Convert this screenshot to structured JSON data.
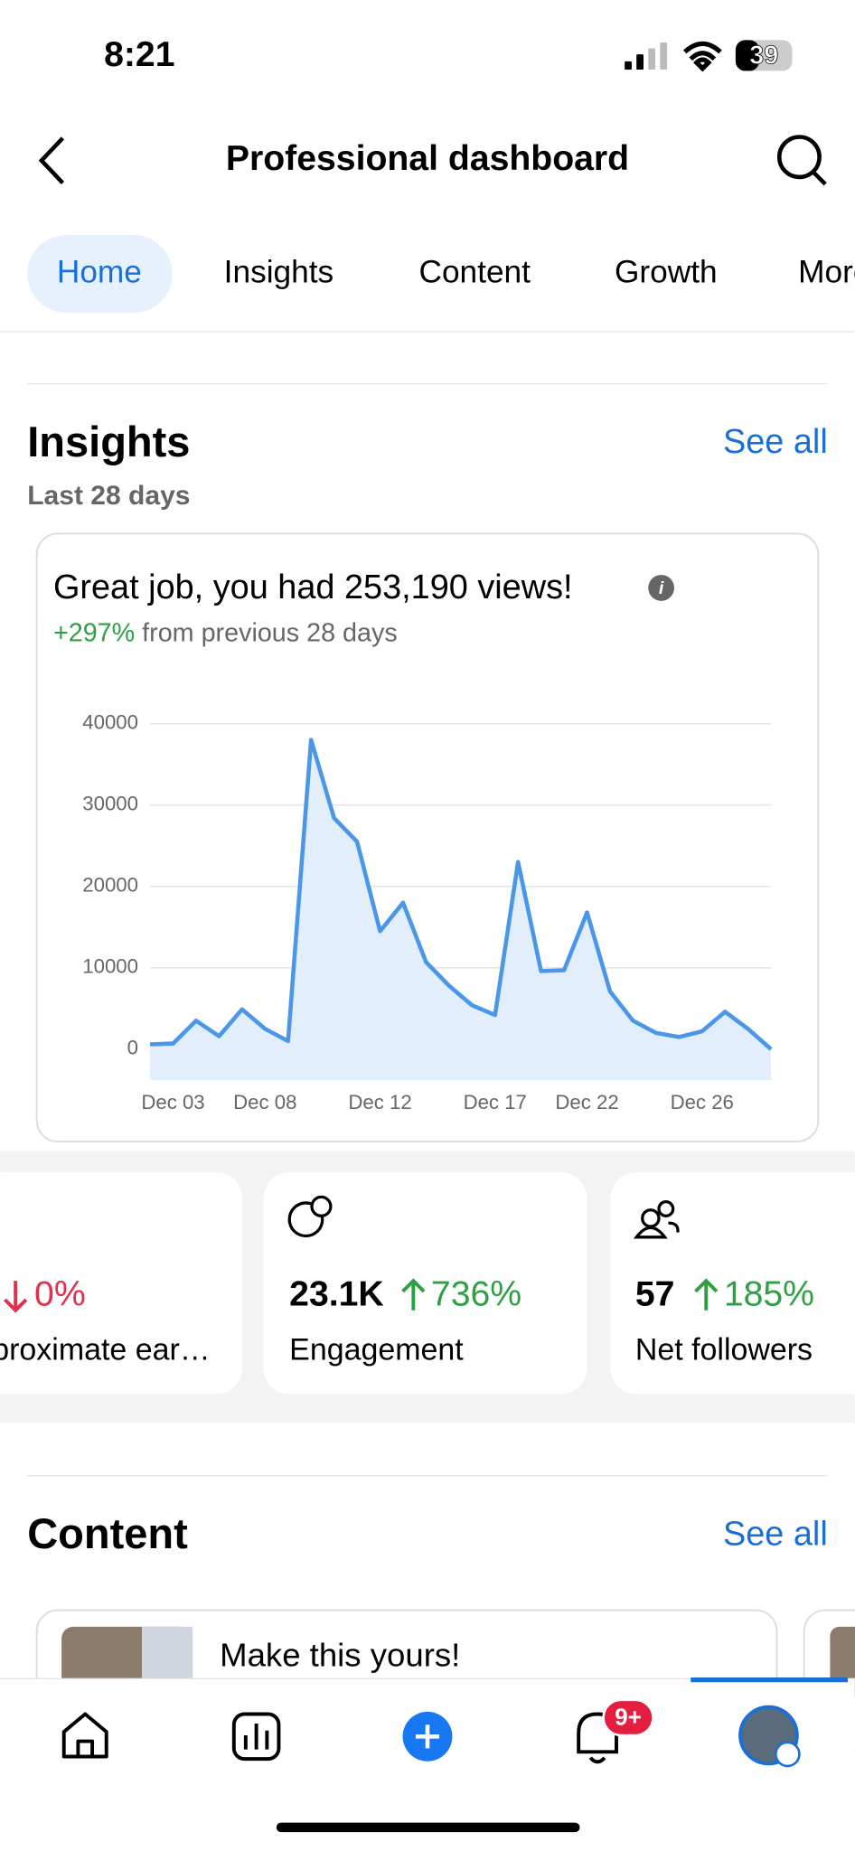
{
  "status_bar": {
    "time": "8:21",
    "battery": "39"
  },
  "header": {
    "title": "Professional dashboard"
  },
  "tabs": [
    "Home",
    "Insights",
    "Content",
    "Growth",
    "More"
  ],
  "insights": {
    "title": "Insights",
    "see_all": "See all",
    "period": "Last 28 days",
    "headline": "Great job, you had 253,190 views!",
    "change": "+297%",
    "change_note": "from previous 28 days"
  },
  "chart_data": {
    "type": "line",
    "color": "#4a97ea",
    "fill": "#e3eefc",
    "categories": [
      null,
      "Dec 03",
      null,
      null,
      null,
      "Dec 08",
      null,
      null,
      null,
      null,
      "Dec 12",
      null,
      null,
      null,
      null,
      "Dec 17",
      null,
      null,
      null,
      "Dec 22",
      null,
      null,
      null,
      null,
      "Dec 26",
      null,
      null,
      null
    ],
    "values": [
      600,
      700,
      3500,
      1600,
      4900,
      2500,
      1000,
      38000,
      28400,
      25500,
      14500,
      18000,
      10700,
      7800,
      5400,
      4200,
      23000,
      9600,
      9700,
      16800,
      7100,
      3500,
      2000,
      1500,
      2200,
      4600,
      2500,
      0
    ],
    "ylim": [
      -3800,
      40000
    ],
    "yticks": [
      0,
      10000,
      20000,
      30000,
      40000
    ],
    "grid": true
  },
  "metrics": [
    {
      "value": "0%",
      "label": "Approximate ear…"
    },
    {
      "value": "23.1K",
      "change": "736%",
      "label": "Engagement"
    },
    {
      "value": "57",
      "change": "185%",
      "label": "Net followers"
    }
  ],
  "content": {
    "title": "Content",
    "see_all": "See all",
    "items": [
      {
        "title": "Make this yours!"
      }
    ]
  },
  "nav": {
    "badge": "9+"
  }
}
